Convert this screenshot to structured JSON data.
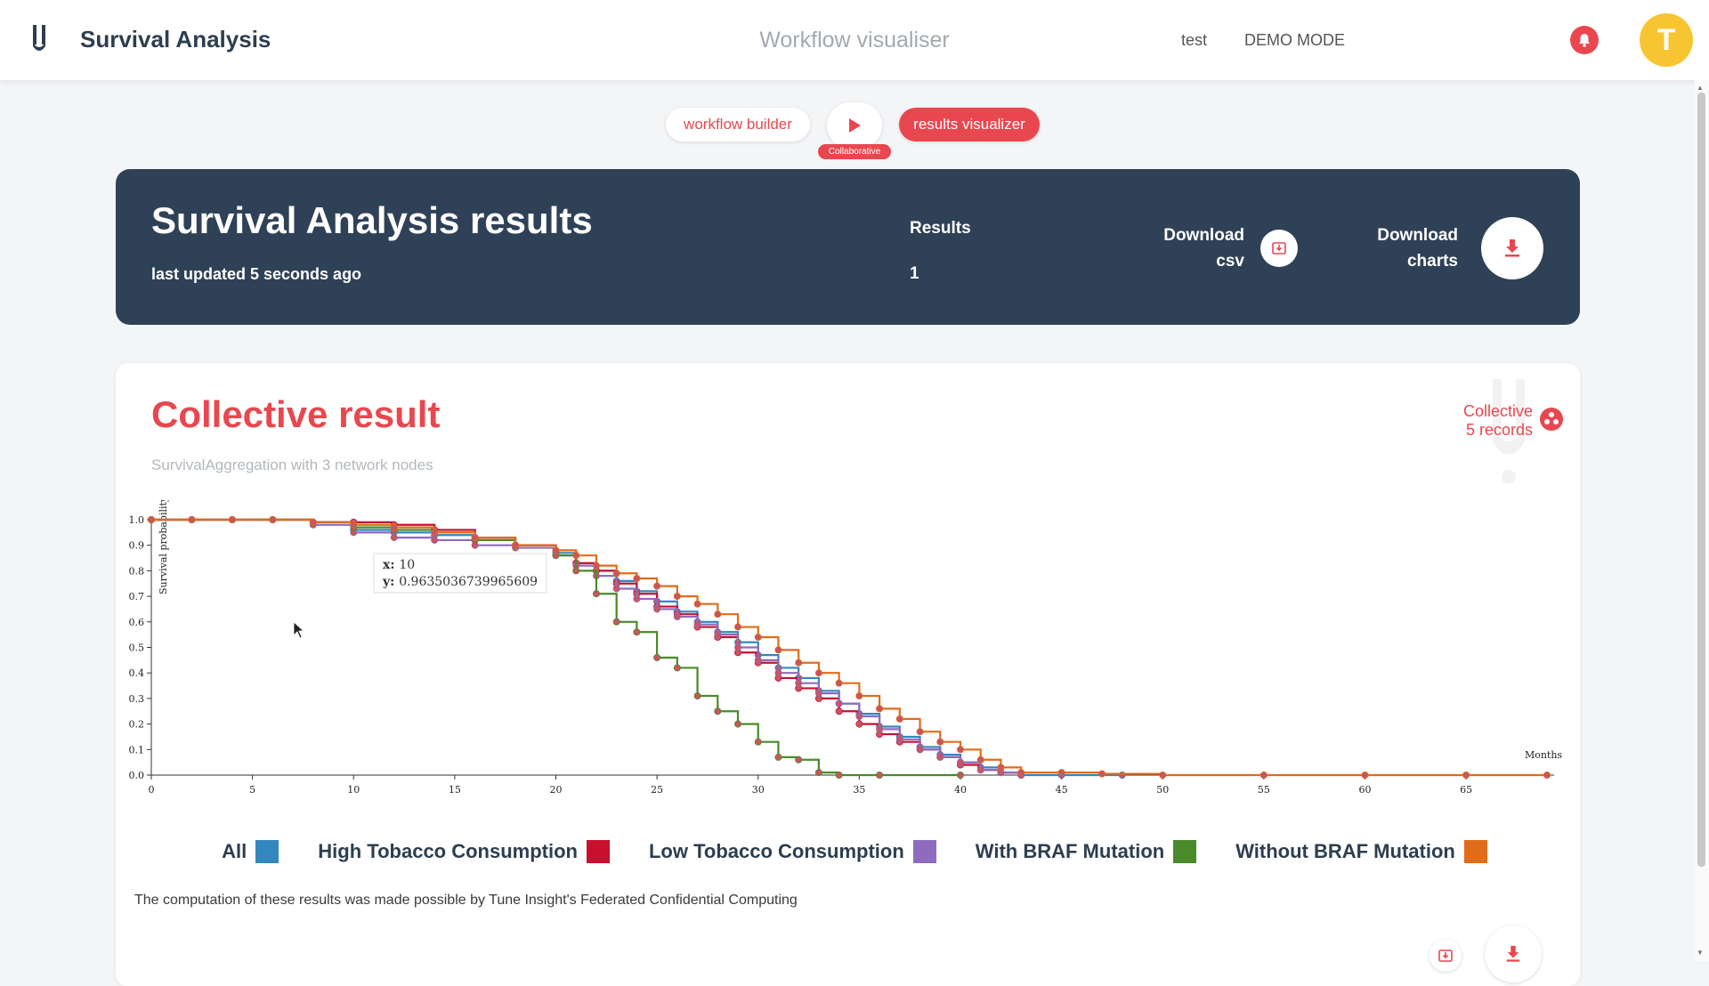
{
  "header": {
    "app_title": "Survival Analysis",
    "page_heading": "Workflow visualiser",
    "nav_items": [
      "test",
      "DEMO MODE"
    ],
    "avatar_letter": "T",
    "logo_icon": "tune-insight-logo-icon",
    "bell_icon": "bell-icon"
  },
  "workflow_nav": {
    "builder_label": "workflow builder",
    "results_label": "results visualizer",
    "badge": "Collaborative"
  },
  "banner": {
    "title": "Survival Analysis results",
    "updated": "last updated 5 seconds ago",
    "results_label": "Results",
    "results_value": "1",
    "download_csv_line1": "Download",
    "download_csv_line2": "csv",
    "download_charts_line1": "Download",
    "download_charts_line2": "charts"
  },
  "card": {
    "title": "Collective result",
    "subtitle": "SurvivalAggregation with 3 network nodes",
    "collective_line1": "Collective",
    "collective_line2": "5 records",
    "footnote": "The computation of these results was made possible by Tune Insight's Federated Confidential Computing"
  },
  "tooltip": {
    "x_label": "x:",
    "x_value": "10",
    "y_label": "y:",
    "y_value": "0.9635036739965609"
  },
  "colors": {
    "accent": "#e9474f",
    "navy": "#2f4157",
    "avatar": "#f7c531"
  },
  "chart_data": {
    "type": "line",
    "step": true,
    "xlabel": "Months",
    "ylabel": "Survival probability",
    "xlim": [
      0,
      69
    ],
    "ylim": [
      0,
      1
    ],
    "x_ticks": [
      0,
      5,
      10,
      15,
      20,
      25,
      30,
      35,
      40,
      45,
      50,
      55,
      60,
      65
    ],
    "y_ticks": [
      0.0,
      0.1,
      0.2,
      0.3,
      0.4,
      0.5,
      0.6,
      0.7,
      0.8,
      0.9,
      1.0
    ],
    "legend_position": "bottom",
    "series": [
      {
        "name": "All",
        "color": "#3288bd",
        "points": [
          [
            0,
            1
          ],
          [
            2,
            1
          ],
          [
            4,
            1
          ],
          [
            6,
            1
          ],
          [
            8,
            0.99
          ],
          [
            10,
            0.96
          ],
          [
            12,
            0.95
          ],
          [
            14,
            0.94
          ],
          [
            16,
            0.92
          ],
          [
            18,
            0.9
          ],
          [
            20,
            0.87
          ],
          [
            21,
            0.83
          ],
          [
            22,
            0.8
          ],
          [
            23,
            0.76
          ],
          [
            24,
            0.72
          ],
          [
            25,
            0.68
          ],
          [
            26,
            0.64
          ],
          [
            27,
            0.6
          ],
          [
            28,
            0.56
          ],
          [
            29,
            0.52
          ],
          [
            30,
            0.47
          ],
          [
            31,
            0.42
          ],
          [
            32,
            0.38
          ],
          [
            33,
            0.33
          ],
          [
            34,
            0.28
          ],
          [
            35,
            0.24
          ],
          [
            36,
            0.19
          ],
          [
            37,
            0.15
          ],
          [
            38,
            0.11
          ],
          [
            39,
            0.08
          ],
          [
            40,
            0.05
          ],
          [
            41,
            0.03
          ],
          [
            42,
            0.01
          ],
          [
            43,
            0
          ],
          [
            45,
            0
          ],
          [
            48,
            0
          ]
        ]
      },
      {
        "name": "High Tobacco Consumption",
        "color": "#c8102e",
        "points": [
          [
            0,
            1
          ],
          [
            2,
            1
          ],
          [
            4,
            1
          ],
          [
            6,
            1
          ],
          [
            8,
            0.99
          ],
          [
            10,
            0.99
          ],
          [
            12,
            0.98
          ],
          [
            14,
            0.96
          ],
          [
            16,
            0.93
          ],
          [
            18,
            0.9
          ],
          [
            20,
            0.88
          ],
          [
            21,
            0.83
          ],
          [
            22,
            0.8
          ],
          [
            23,
            0.75
          ],
          [
            24,
            0.71
          ],
          [
            25,
            0.66
          ],
          [
            26,
            0.63
          ],
          [
            27,
            0.58
          ],
          [
            28,
            0.54
          ],
          [
            29,
            0.48
          ],
          [
            30,
            0.44
          ],
          [
            31,
            0.38
          ],
          [
            32,
            0.34
          ],
          [
            33,
            0.3
          ],
          [
            34,
            0.25
          ],
          [
            35,
            0.2
          ],
          [
            36,
            0.16
          ],
          [
            37,
            0.13
          ],
          [
            38,
            0.1
          ],
          [
            39,
            0.07
          ],
          [
            40,
            0.04
          ],
          [
            41,
            0.02
          ],
          [
            42,
            0.01
          ],
          [
            43,
            0
          ]
        ]
      },
      {
        "name": "Low Tobacco Consumption",
        "color": "#8e6bbf",
        "points": [
          [
            0,
            1
          ],
          [
            2,
            1
          ],
          [
            4,
            1
          ],
          [
            6,
            1
          ],
          [
            8,
            0.98
          ],
          [
            10,
            0.95
          ],
          [
            12,
            0.93
          ],
          [
            14,
            0.92
          ],
          [
            16,
            0.9
          ],
          [
            18,
            0.89
          ],
          [
            20,
            0.86
          ],
          [
            21,
            0.82
          ],
          [
            22,
            0.78
          ],
          [
            23,
            0.73
          ],
          [
            24,
            0.69
          ],
          [
            25,
            0.65
          ],
          [
            26,
            0.62
          ],
          [
            27,
            0.59
          ],
          [
            28,
            0.55
          ],
          [
            29,
            0.5
          ],
          [
            30,
            0.45
          ],
          [
            31,
            0.4
          ],
          [
            32,
            0.36
          ],
          [
            33,
            0.32
          ],
          [
            34,
            0.28
          ],
          [
            35,
            0.23
          ],
          [
            36,
            0.18
          ],
          [
            37,
            0.14
          ],
          [
            38,
            0.1
          ],
          [
            39,
            0.07
          ],
          [
            40,
            0.05
          ],
          [
            41,
            0.02
          ],
          [
            42,
            0.01
          ],
          [
            43,
            0
          ]
        ]
      },
      {
        "name": "With BRAF Mutation",
        "color": "#4a8a2a",
        "points": [
          [
            0,
            1
          ],
          [
            2,
            1
          ],
          [
            4,
            1
          ],
          [
            6,
            1
          ],
          [
            8,
            0.99
          ],
          [
            10,
            0.97
          ],
          [
            12,
            0.96
          ],
          [
            14,
            0.95
          ],
          [
            16,
            0.92
          ],
          [
            18,
            0.9
          ],
          [
            20,
            0.86
          ],
          [
            21,
            0.8
          ],
          [
            22,
            0.71
          ],
          [
            23,
            0.6
          ],
          [
            24,
            0.56
          ],
          [
            25,
            0.46
          ],
          [
            26,
            0.42
          ],
          [
            27,
            0.31
          ],
          [
            28,
            0.25
          ],
          [
            29,
            0.2
          ],
          [
            30,
            0.13
          ],
          [
            31,
            0.07
          ],
          [
            32,
            0.06
          ],
          [
            33,
            0.01
          ],
          [
            34,
            0
          ],
          [
            36,
            0
          ],
          [
            40,
            0
          ]
        ]
      },
      {
        "name": "Without BRAF Mutation",
        "color": "#e06c1a",
        "points": [
          [
            0,
            1
          ],
          [
            2,
            1
          ],
          [
            4,
            1
          ],
          [
            6,
            1
          ],
          [
            8,
            0.99
          ],
          [
            10,
            0.98
          ],
          [
            12,
            0.97
          ],
          [
            14,
            0.95
          ],
          [
            16,
            0.93
          ],
          [
            18,
            0.9
          ],
          [
            20,
            0.88
          ],
          [
            21,
            0.86
          ],
          [
            22,
            0.82
          ],
          [
            23,
            0.79
          ],
          [
            24,
            0.77
          ],
          [
            25,
            0.74
          ],
          [
            26,
            0.7
          ],
          [
            27,
            0.67
          ],
          [
            28,
            0.63
          ],
          [
            29,
            0.58
          ],
          [
            30,
            0.54
          ],
          [
            31,
            0.49
          ],
          [
            32,
            0.44
          ],
          [
            33,
            0.4
          ],
          [
            34,
            0.36
          ],
          [
            35,
            0.31
          ],
          [
            36,
            0.26
          ],
          [
            37,
            0.22
          ],
          [
            38,
            0.17
          ],
          [
            39,
            0.13
          ],
          [
            40,
            0.1
          ],
          [
            41,
            0.06
          ],
          [
            42,
            0.03
          ],
          [
            43,
            0.01
          ],
          [
            45,
            0.01
          ],
          [
            47,
            0.005
          ],
          [
            50,
            0
          ],
          [
            55,
            0
          ],
          [
            60,
            0
          ],
          [
            65,
            0
          ],
          [
            69,
            0
          ]
        ]
      }
    ]
  }
}
